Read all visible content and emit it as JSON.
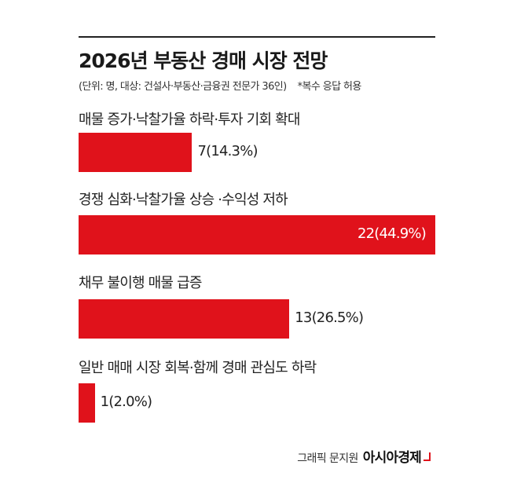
{
  "chart_data": {
    "type": "bar",
    "orientation": "horizontal",
    "title": "2026년 부동산 경매 시장 전망",
    "subtitle": "(단위: 명, 대상: 건설사·부동산·금융권 전문가 36인)",
    "note": "*복수 응답 허용",
    "categories": [
      "매물 증가·낙찰가율 하락·투자 기회 확대",
      "경쟁 심화·낙찰가율 상승 ·수익성 저하",
      "채무 불이행 매물 급증",
      "일반 매매 시장 회복·함께 경매 관심도 하락"
    ],
    "values": [
      7,
      22,
      13,
      1
    ],
    "value_labels": [
      "7(14.3%)",
      "22(44.9%)",
      "13(26.5%)",
      "1(2.0%)"
    ],
    "bar_color": "#e0121b",
    "grid": false
  },
  "credit": {
    "by": "그래픽 문지원",
    "brand": "아시아경제"
  }
}
